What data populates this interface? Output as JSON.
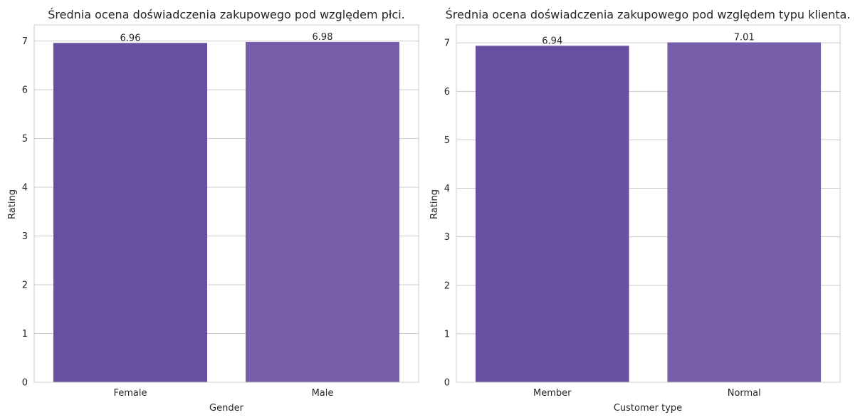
{
  "colors": {
    "background": "#ffffff",
    "grid": "#cccccc",
    "frame": "#cccccc",
    "text": "#262626",
    "bar_dark": "#6750a0",
    "bar_light": "#765eab"
  },
  "chart_data": [
    {
      "type": "bar",
      "title": "Średnia ocena doświadczenia zakupowego pod względem płci.",
      "xlabel": "Gender",
      "ylabel": "Rating",
      "categories": [
        "Female",
        "Male"
      ],
      "values": [
        6.96,
        6.98
      ],
      "value_labels": [
        "6.96",
        "6.98"
      ],
      "ylim": [
        0,
        7.33
      ],
      "yticks": [
        0,
        1,
        2,
        3,
        4,
        5,
        6,
        7
      ],
      "ytick_labels": [
        "0",
        "1",
        "2",
        "3",
        "4",
        "5",
        "6",
        "7"
      ],
      "grid": true,
      "legend": "none"
    },
    {
      "type": "bar",
      "title": "Średnia ocena doświadczenia zakupowego pod względem typu klienta.",
      "xlabel": "Customer type",
      "ylabel": "Rating",
      "categories": [
        "Member",
        "Normal"
      ],
      "values": [
        6.94,
        7.01
      ],
      "value_labels": [
        "6.94",
        "7.01"
      ],
      "ylim": [
        0,
        7.37
      ],
      "yticks": [
        0,
        1,
        2,
        3,
        4,
        5,
        6,
        7
      ],
      "ytick_labels": [
        "0",
        "1",
        "2",
        "3",
        "4",
        "5",
        "6",
        "7"
      ],
      "grid": true,
      "legend": "none"
    }
  ]
}
